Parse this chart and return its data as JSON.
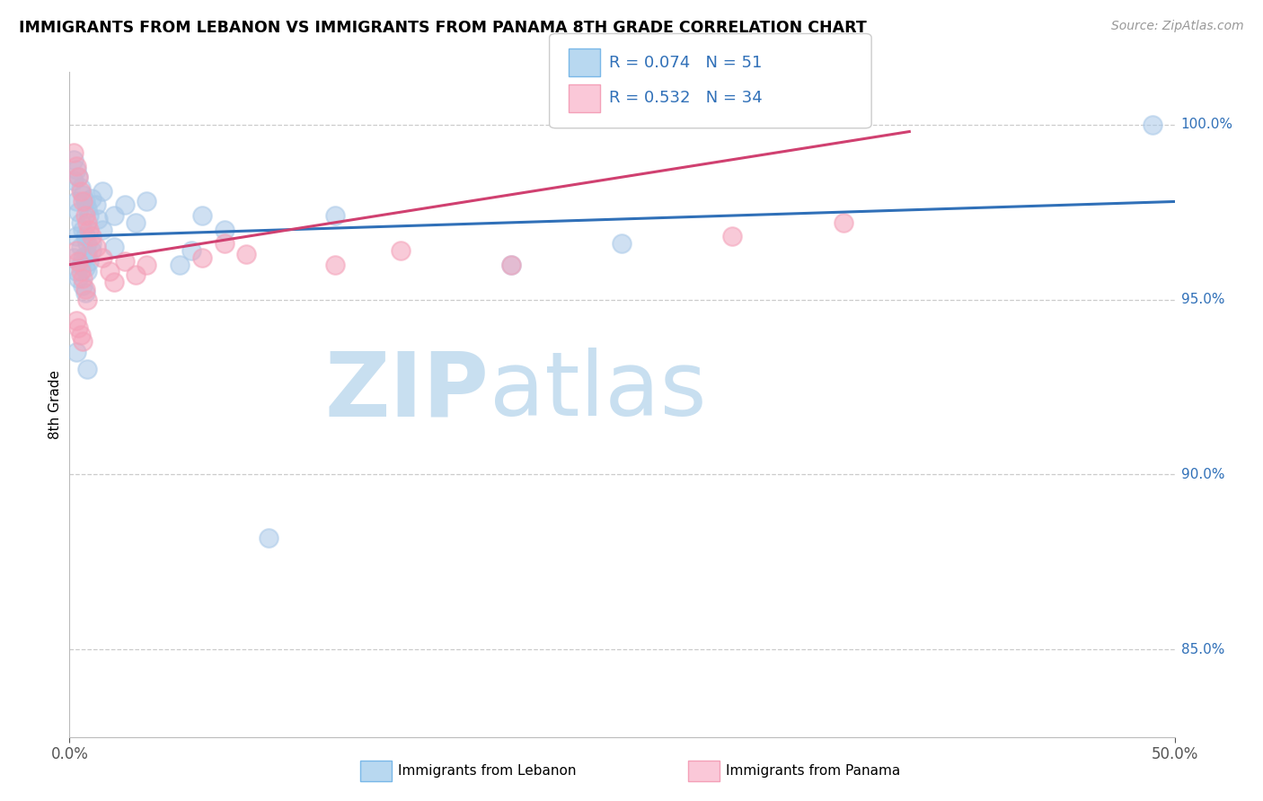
{
  "title": "IMMIGRANTS FROM LEBANON VS IMMIGRANTS FROM PANAMA 8TH GRADE CORRELATION CHART",
  "source_text": "Source: ZipAtlas.com",
  "ylabel": "8th Grade",
  "xlim": [
    0.0,
    0.5
  ],
  "ylim": [
    0.825,
    1.015
  ],
  "xtick_labels": [
    "0.0%",
    "50.0%"
  ],
  "ytick_labels": [
    "85.0%",
    "90.0%",
    "95.0%",
    "100.0%"
  ],
  "ytick_values": [
    0.85,
    0.9,
    0.95,
    1.0
  ],
  "legend_r1": "R = 0.074",
  "legend_n1": "N = 51",
  "legend_r2": "R = 0.532",
  "legend_n2": "N = 34",
  "blue_color": "#a8c8e8",
  "pink_color": "#f4a0b8",
  "trend_blue": "#3070b8",
  "trend_pink": "#d04070",
  "legend_text_color": "#3070b8",
  "watermark_zip_color": "#c8dff0",
  "watermark_atlas_color": "#c8dff0",
  "watermark_text": "ZIPatlas",
  "blue_scatter_x": [
    0.002,
    0.002,
    0.003,
    0.003,
    0.004,
    0.004,
    0.005,
    0.005,
    0.006,
    0.006,
    0.007,
    0.007,
    0.008,
    0.008,
    0.009,
    0.01,
    0.01,
    0.012,
    0.013,
    0.015,
    0.02,
    0.025,
    0.03,
    0.035,
    0.002,
    0.003,
    0.004,
    0.005,
    0.006,
    0.007,
    0.008,
    0.06,
    0.07,
    0.12,
    0.003,
    0.005,
    0.006,
    0.007,
    0.008,
    0.009,
    0.01,
    0.015,
    0.02,
    0.05,
    0.055,
    0.2,
    0.25,
    0.49,
    0.003,
    0.008,
    0.09
  ],
  "blue_scatter_y": [
    0.99,
    0.984,
    0.987,
    0.978,
    0.985,
    0.975,
    0.982,
    0.972,
    0.98,
    0.97,
    0.978,
    0.968,
    0.976,
    0.966,
    0.974,
    0.979,
    0.964,
    0.977,
    0.973,
    0.981,
    0.974,
    0.977,
    0.972,
    0.978,
    0.962,
    0.958,
    0.956,
    0.96,
    0.954,
    0.952,
    0.958,
    0.974,
    0.97,
    0.974,
    0.968,
    0.965,
    0.962,
    0.959,
    0.963,
    0.961,
    0.966,
    0.97,
    0.965,
    0.96,
    0.964,
    0.96,
    0.966,
    1.0,
    0.935,
    0.93,
    0.882
  ],
  "pink_scatter_x": [
    0.002,
    0.003,
    0.004,
    0.005,
    0.006,
    0.007,
    0.008,
    0.009,
    0.01,
    0.003,
    0.004,
    0.005,
    0.006,
    0.007,
    0.008,
    0.012,
    0.015,
    0.018,
    0.02,
    0.025,
    0.03,
    0.035,
    0.06,
    0.07,
    0.08,
    0.003,
    0.004,
    0.005,
    0.006,
    0.12,
    0.15,
    0.2,
    0.3,
    0.35
  ],
  "pink_scatter_y": [
    0.992,
    0.988,
    0.985,
    0.981,
    0.978,
    0.974,
    0.972,
    0.97,
    0.968,
    0.964,
    0.961,
    0.958,
    0.956,
    0.953,
    0.95,
    0.965,
    0.962,
    0.958,
    0.955,
    0.961,
    0.957,
    0.96,
    0.962,
    0.966,
    0.963,
    0.944,
    0.942,
    0.94,
    0.938,
    0.96,
    0.964,
    0.96,
    0.968,
    0.972
  ],
  "blue_trend_x": [
    0.0,
    0.5
  ],
  "blue_trend_y": [
    0.968,
    0.978
  ],
  "pink_trend_x": [
    0.0,
    0.38
  ],
  "pink_trend_y": [
    0.96,
    0.998
  ]
}
